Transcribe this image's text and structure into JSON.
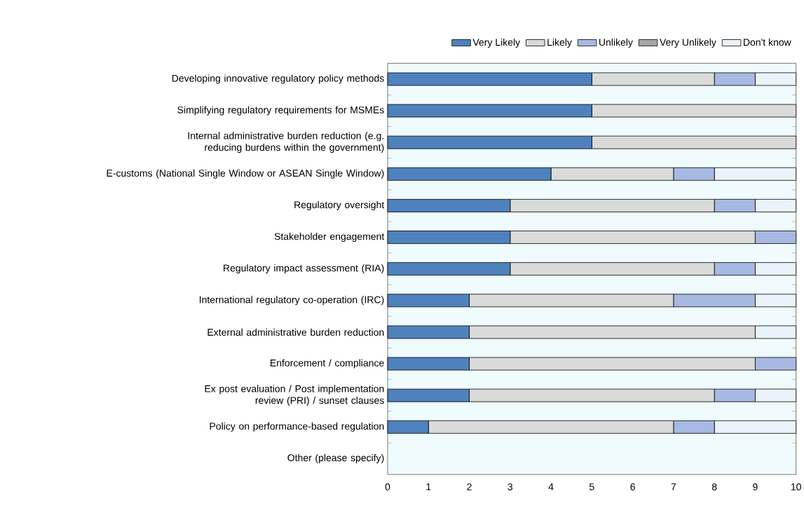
{
  "chart_data": {
    "type": "bar",
    "orientation": "horizontal",
    "stacked": true,
    "categories": [
      "Developing innovative regulatory policy methods",
      "Simplifying regulatory requirements for MSMEs",
      "Internal administrative burden reduction (e.g. reducing burdens within the government)",
      "E-customs (National Single Window or ASEAN Single Window)",
      "Regulatory oversight",
      "Stakeholder engagement",
      "Regulatory impact assessment (RIA)",
      "International regulatory co-operation (IRC)",
      "External administrative burden reduction",
      "Enforcement / compliance",
      "Ex post evaluation / Post implementation review (PRI) / sunset clauses",
      "Policy on performance-based regulation",
      "Other (please specify)"
    ],
    "series": [
      {
        "name": "Very Likely",
        "color": "#4f81bd",
        "values": [
          5,
          5,
          5,
          4,
          3,
          3,
          3,
          2,
          2,
          2,
          2,
          1,
          0
        ]
      },
      {
        "name": "Likely",
        "color": "#dadada",
        "values": [
          3,
          5,
          5,
          3,
          5,
          6,
          5,
          5,
          7,
          7,
          6,
          6,
          0
        ]
      },
      {
        "name": "Unlikely",
        "color": "#a7b9e3",
        "values": [
          1,
          0,
          0,
          1,
          1,
          1,
          1,
          2,
          0,
          1,
          1,
          1,
          0
        ]
      },
      {
        "name": "Very Unlikely",
        "color": "#a6a6a6",
        "values": [
          0,
          0,
          0,
          0,
          0,
          0,
          0,
          0,
          0,
          0,
          0,
          0,
          0
        ]
      },
      {
        "name": "Don't know",
        "color": "#eaf2fa",
        "values": [
          1,
          0,
          0,
          2,
          1,
          0,
          1,
          1,
          1,
          0,
          1,
          2,
          0
        ]
      }
    ],
    "xlim": [
      0,
      10
    ],
    "xticks": [
      0,
      1,
      2,
      3,
      4,
      5,
      6,
      7,
      8,
      9,
      10
    ],
    "grid": false,
    "legend": "top right"
  }
}
